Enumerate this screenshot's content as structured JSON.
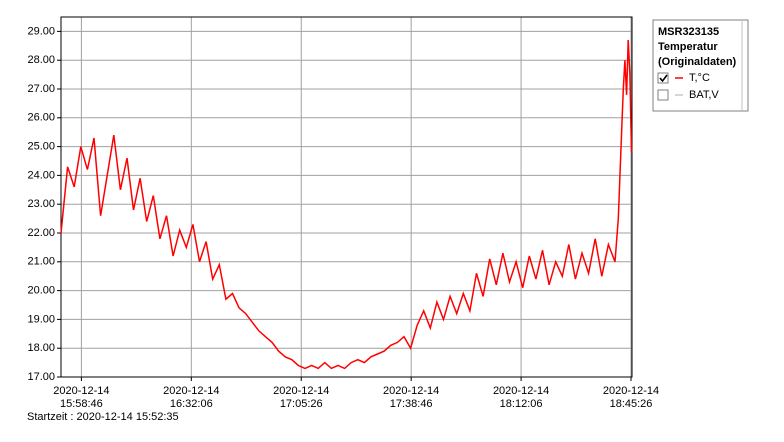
{
  "chart_data": {
    "type": "line",
    "legend_title": [
      "MSR323135",
      "Temperatur",
      "(Originaldaten)"
    ],
    "footer": "Startzeit : 2020-12-14 15:52:35",
    "xlim": [
      "2020-12-14 15:52:35",
      "2020-12-14 18:45:44"
    ],
    "xticks": [
      "2020-12-14 15:58:46",
      "2020-12-14 16:32:06",
      "2020-12-14 17:05:26",
      "2020-12-14 17:38:46",
      "2020-12-14 18:12:06",
      "2020-12-14 18:45:26"
    ],
    "ylim": [
      17,
      29.5
    ],
    "yticks": [
      {
        "value": 17,
        "label": "17.00"
      },
      {
        "value": 18,
        "label": "18.00"
      },
      {
        "value": 19,
        "label": "19.00"
      },
      {
        "value": 20,
        "label": "20.00"
      },
      {
        "value": 21,
        "label": "21.00"
      },
      {
        "value": 22,
        "label": "22.00"
      },
      {
        "value": 23,
        "label": "23.00"
      },
      {
        "value": 24,
        "label": "24.00"
      },
      {
        "value": 25,
        "label": "25.00"
      },
      {
        "value": 26,
        "label": "26.00"
      },
      {
        "value": 27,
        "label": "27.00"
      },
      {
        "value": 28,
        "label": "28.00"
      },
      {
        "value": 29,
        "label": "29.00"
      }
    ],
    "grid": true,
    "x": [
      "2020-12-14 15:52:35",
      "2020-12-14 15:54:35",
      "2020-12-14 15:56:35",
      "2020-12-14 15:58:35",
      "2020-12-14 16:00:35",
      "2020-12-14 16:02:35",
      "2020-12-14 16:04:35",
      "2020-12-14 16:06:35",
      "2020-12-14 16:08:35",
      "2020-12-14 16:10:35",
      "2020-12-14 16:12:35",
      "2020-12-14 16:14:35",
      "2020-12-14 16:16:35",
      "2020-12-14 16:18:35",
      "2020-12-14 16:20:35",
      "2020-12-14 16:22:35",
      "2020-12-14 16:24:35",
      "2020-12-14 16:26:35",
      "2020-12-14 16:28:35",
      "2020-12-14 16:30:35",
      "2020-12-14 16:32:35",
      "2020-12-14 16:34:35",
      "2020-12-14 16:36:35",
      "2020-12-14 16:38:35",
      "2020-12-14 16:40:35",
      "2020-12-14 16:42:35",
      "2020-12-14 16:44:35",
      "2020-12-14 16:46:35",
      "2020-12-14 16:48:35",
      "2020-12-14 16:50:35",
      "2020-12-14 16:52:35",
      "2020-12-14 16:54:35",
      "2020-12-14 16:56:35",
      "2020-12-14 16:58:35",
      "2020-12-14 17:00:35",
      "2020-12-14 17:02:35",
      "2020-12-14 17:04:35",
      "2020-12-14 17:06:35",
      "2020-12-14 17:08:35",
      "2020-12-14 17:10:35",
      "2020-12-14 17:12:35",
      "2020-12-14 17:14:35",
      "2020-12-14 17:16:35",
      "2020-12-14 17:18:35",
      "2020-12-14 17:20:35",
      "2020-12-14 17:22:35",
      "2020-12-14 17:24:35",
      "2020-12-14 17:26:35",
      "2020-12-14 17:28:35",
      "2020-12-14 17:30:35",
      "2020-12-14 17:32:35",
      "2020-12-14 17:34:35",
      "2020-12-14 17:36:35",
      "2020-12-14 17:38:35",
      "2020-12-14 17:40:35",
      "2020-12-14 17:42:35",
      "2020-12-14 17:44:35",
      "2020-12-14 17:46:35",
      "2020-12-14 17:48:35",
      "2020-12-14 17:50:35",
      "2020-12-14 17:52:35",
      "2020-12-14 17:54:35",
      "2020-12-14 17:56:35",
      "2020-12-14 17:58:35",
      "2020-12-14 18:00:35",
      "2020-12-14 18:02:35",
      "2020-12-14 18:04:35",
      "2020-12-14 18:06:35",
      "2020-12-14 18:08:35",
      "2020-12-14 18:10:35",
      "2020-12-14 18:12:35",
      "2020-12-14 18:14:35",
      "2020-12-14 18:16:35",
      "2020-12-14 18:18:35",
      "2020-12-14 18:20:35",
      "2020-12-14 18:22:35",
      "2020-12-14 18:24:35",
      "2020-12-14 18:26:35",
      "2020-12-14 18:28:35",
      "2020-12-14 18:30:35",
      "2020-12-14 18:32:35",
      "2020-12-14 18:34:35",
      "2020-12-14 18:36:35",
      "2020-12-14 18:38:35",
      "2020-12-14 18:40:35",
      "2020-12-14 18:41:35",
      "2020-12-14 18:42:35",
      "2020-12-14 18:43:05",
      "2020-12-14 18:43:35",
      "2020-12-14 18:44:05",
      "2020-12-14 18:44:35",
      "2020-12-14 18:45:05",
      "2020-12-14 18:45:35"
    ],
    "series": [
      {
        "name": "T,°C",
        "color": "#ff0000",
        "checked": true,
        "values": [
          22.0,
          24.3,
          23.6,
          25.0,
          24.2,
          25.3,
          22.6,
          24.0,
          25.4,
          23.5,
          24.6,
          22.8,
          23.9,
          22.4,
          23.3,
          21.8,
          22.6,
          21.2,
          22.1,
          21.5,
          22.3,
          21.0,
          21.7,
          20.4,
          20.9,
          19.7,
          19.9,
          19.4,
          19.2,
          18.9,
          18.6,
          18.4,
          18.2,
          17.9,
          17.7,
          17.6,
          17.4,
          17.3,
          17.4,
          17.3,
          17.5,
          17.3,
          17.4,
          17.3,
          17.5,
          17.6,
          17.5,
          17.7,
          17.8,
          17.9,
          18.1,
          18.2,
          18.4,
          18.0,
          18.8,
          19.3,
          18.7,
          19.6,
          19.0,
          19.8,
          19.2,
          19.9,
          19.3,
          20.6,
          19.8,
          21.1,
          20.2,
          21.3,
          20.3,
          21.0,
          20.1,
          21.2,
          20.4,
          21.4,
          20.2,
          21.0,
          20.5,
          21.6,
          20.4,
          21.3,
          20.6,
          21.8,
          20.5,
          21.6,
          21.0,
          22.5,
          25.5,
          27.0,
          28.0,
          26.8,
          28.7,
          27.5,
          24.8
        ]
      },
      {
        "name": "BAT,V",
        "color": "#c8c8c8",
        "checked": false
      }
    ]
  }
}
